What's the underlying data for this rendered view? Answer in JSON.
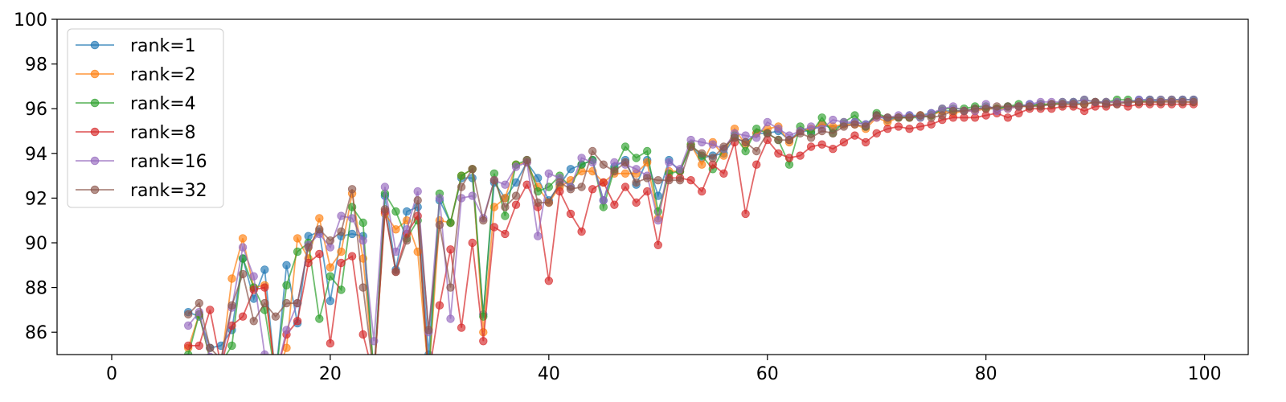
{
  "chart_data": {
    "type": "line",
    "xlim": [
      -5,
      104
    ],
    "ylim": [
      85,
      100
    ],
    "grid": false,
    "legend_position": "top-left",
    "x_ticks": [
      0,
      20,
      40,
      60,
      80,
      100
    ],
    "x_tick_labels": [
      "0",
      "20",
      "40",
      "60",
      "80",
      "100"
    ],
    "y_ticks": [
      86,
      88,
      90,
      92,
      94,
      96,
      98,
      100
    ],
    "y_tick_labels": [
      "86",
      "88",
      "90",
      "92",
      "94",
      "96",
      "98",
      "100"
    ],
    "x": [
      7,
      8,
      9,
      10,
      11,
      12,
      13,
      14,
      15,
      16,
      17,
      18,
      19,
      20,
      21,
      22,
      23,
      24,
      25,
      26,
      27,
      28,
      29,
      30,
      31,
      32,
      33,
      34,
      35,
      36,
      37,
      38,
      39,
      40,
      41,
      42,
      43,
      44,
      45,
      46,
      47,
      48,
      49,
      50,
      51,
      52,
      53,
      54,
      55,
      56,
      57,
      58,
      59,
      60,
      61,
      62,
      63,
      64,
      65,
      66,
      67,
      68,
      69,
      70,
      71,
      72,
      73,
      74,
      75,
      76,
      77,
      78,
      79,
      80,
      81,
      82,
      83,
      84,
      85,
      86,
      87,
      88,
      89,
      90,
      91,
      92,
      93,
      94,
      95,
      96,
      97,
      98,
      99
    ],
    "series": [
      {
        "name": "rank=1",
        "color": "#1f77b4",
        "values": [
          86.9,
          86.7,
          85.3,
          85.4,
          86.1,
          89.3,
          87.5,
          88.8,
          84.0,
          89.0,
          86.4,
          90.3,
          90.5,
          87.4,
          90.3,
          90.4,
          90.3,
          84.0,
          92.1,
          88.8,
          91.4,
          91.6,
          85.0,
          91.9,
          90.9,
          92.9,
          92.9,
          86.8,
          92.7,
          92.0,
          92.7,
          93.6,
          92.9,
          91.9,
          92.6,
          93.3,
          93.5,
          93.7,
          91.9,
          93.4,
          93.7,
          92.6,
          93.7,
          92.1,
          93.7,
          93.2,
          94.3,
          93.8,
          93.9,
          94.0,
          94.7,
          94.5,
          94.9,
          94.9,
          95.0,
          94.6,
          95.0,
          95.0,
          95.3,
          95.1,
          95.3,
          95.4,
          95.3,
          95.7,
          95.5,
          95.6,
          95.7,
          95.7,
          95.8,
          95.9,
          95.9,
          95.9,
          96.0,
          96.0,
          96.0,
          96.1,
          96.1,
          96.2,
          96.2,
          96.2,
          96.2,
          96.3,
          96.2,
          96.3,
          96.3,
          96.3,
          96.3,
          96.4,
          96.4,
          96.3,
          96.4,
          96.4,
          96.4
        ]
      },
      {
        "name": "rank=2",
        "color": "#ff7f0e",
        "values": [
          85.3,
          86.8,
          84.8,
          84.5,
          88.4,
          90.2,
          88.0,
          88.1,
          84.0,
          85.3,
          90.2,
          89.3,
          91.1,
          88.9,
          89.6,
          92.2,
          89.3,
          84.0,
          91.3,
          90.6,
          91.0,
          89.6,
          84.0,
          91.0,
          90.9,
          93.0,
          93.3,
          86.0,
          91.6,
          92.0,
          93.5,
          93.6,
          92.5,
          91.8,
          92.5,
          92.8,
          93.2,
          93.2,
          92.7,
          93.1,
          93.1,
          93.1,
          93.6,
          91.1,
          93.2,
          93.2,
          94.4,
          93.5,
          94.5,
          93.9,
          95.1,
          94.4,
          94.9,
          95.1,
          95.2,
          94.5,
          95.0,
          95.1,
          95.3,
          95.2,
          95.3,
          95.3,
          95.1,
          95.6,
          95.4,
          95.6,
          95.6,
          95.7,
          95.7,
          95.9,
          95.8,
          95.9,
          95.9,
          96.0,
          96.0,
          96.0,
          96.1,
          96.1,
          96.2,
          96.2,
          96.2,
          96.2,
          96.2,
          96.3,
          96.3,
          96.3,
          96.3,
          96.3,
          96.3,
          96.3,
          96.4,
          96.3,
          96.3
        ]
      },
      {
        "name": "rank=4",
        "color": "#2ca02c",
        "values": [
          85.0,
          86.8,
          84.8,
          84.6,
          85.4,
          89.3,
          88.0,
          87.0,
          84.0,
          88.1,
          89.6,
          90.0,
          86.6,
          88.5,
          87.9,
          91.6,
          90.9,
          84.0,
          92.2,
          91.4,
          90.2,
          91.0,
          84.0,
          92.2,
          90.9,
          93.0,
          93.3,
          86.7,
          93.1,
          91.2,
          93.5,
          93.7,
          92.3,
          92.5,
          93.0,
          92.5,
          93.5,
          93.7,
          91.6,
          93.3,
          94.3,
          93.8,
          94.1,
          91.4,
          93.1,
          93.2,
          94.4,
          93.9,
          93.3,
          94.2,
          94.8,
          94.1,
          95.1,
          94.9,
          94.6,
          93.5,
          95.2,
          94.9,
          95.6,
          94.9,
          95.4,
          95.7,
          95.2,
          95.8,
          95.6,
          95.6,
          95.6,
          95.6,
          95.7,
          96.0,
          96.0,
          96.0,
          96.1,
          96.1,
          96.0,
          96.1,
          96.2,
          96.1,
          96.2,
          96.2,
          96.3,
          96.3,
          96.4,
          96.3,
          96.3,
          96.4,
          96.4,
          96.3,
          96.4,
          96.4,
          96.4,
          96.4,
          96.4
        ]
      },
      {
        "name": "rank=8",
        "color": "#d62728",
        "values": [
          85.4,
          85.4,
          87.0,
          84.5,
          86.3,
          86.7,
          87.9,
          88.0,
          84.0,
          85.9,
          86.5,
          89.1,
          89.5,
          85.5,
          89.1,
          89.4,
          85.9,
          84.0,
          91.4,
          88.7,
          90.4,
          91.2,
          84.0,
          87.2,
          89.7,
          86.2,
          90.0,
          85.6,
          90.7,
          90.4,
          91.7,
          92.6,
          91.6,
          88.3,
          92.3,
          91.3,
          90.5,
          92.4,
          92.7,
          91.7,
          92.5,
          91.8,
          92.3,
          89.9,
          92.9,
          92.9,
          92.8,
          92.3,
          93.5,
          93.1,
          94.5,
          91.3,
          93.5,
          94.6,
          94.0,
          93.8,
          93.9,
          94.3,
          94.4,
          94.2,
          94.5,
          94.8,
          94.5,
          94.9,
          95.1,
          95.2,
          95.1,
          95.2,
          95.3,
          95.5,
          95.6,
          95.6,
          95.6,
          95.7,
          95.8,
          95.6,
          95.8,
          96.0,
          96.0,
          96.0,
          96.1,
          96.1,
          95.9,
          96.1,
          96.1,
          96.2,
          96.1,
          96.2,
          96.2,
          96.2,
          96.2,
          96.2,
          96.2
        ]
      },
      {
        "name": "rank=16",
        "color": "#9467bd",
        "values": [
          86.3,
          86.9,
          84.9,
          84.6,
          87.1,
          89.8,
          88.5,
          85.0,
          84.0,
          86.1,
          87.3,
          89.9,
          90.4,
          89.8,
          91.2,
          91.1,
          90.1,
          85.6,
          92.5,
          89.6,
          90.6,
          92.3,
          86.0,
          92.0,
          86.6,
          92.0,
          92.1,
          91.1,
          92.8,
          92.6,
          93.4,
          93.6,
          90.3,
          93.1,
          92.9,
          92.5,
          93.8,
          93.6,
          91.9,
          93.6,
          93.5,
          93.3,
          93.0,
          91.0,
          93.6,
          93.3,
          94.6,
          94.5,
          94.4,
          94.2,
          94.9,
          94.8,
          94.7,
          95.4,
          95.1,
          94.8,
          95.0,
          95.2,
          95.1,
          95.5,
          95.4,
          95.4,
          95.3,
          95.6,
          95.6,
          95.7,
          95.7,
          95.6,
          95.8,
          96.0,
          96.1,
          95.9,
          95.9,
          96.2,
          95.9,
          96.0,
          96.1,
          96.2,
          96.3,
          96.3,
          96.3,
          96.3,
          96.4,
          96.3,
          96.3,
          96.3,
          96.3,
          96.4,
          96.4,
          96.4,
          96.4,
          96.4,
          96.4
        ]
      },
      {
        "name": "rank=32",
        "color": "#8c564b",
        "values": [
          86.8,
          87.3,
          85.3,
          84.8,
          87.2,
          88.6,
          86.5,
          87.3,
          86.7,
          87.3,
          87.3,
          89.8,
          90.6,
          90.1,
          90.5,
          92.4,
          88.0,
          84.0,
          91.5,
          88.7,
          90.1,
          91.9,
          86.1,
          90.8,
          88.0,
          92.5,
          93.3,
          91.0,
          92.8,
          91.6,
          92.1,
          93.7,
          91.8,
          91.8,
          92.7,
          92.4,
          92.5,
          94.1,
          93.5,
          93.2,
          93.6,
          92.7,
          92.9,
          92.8,
          92.8,
          92.8,
          94.3,
          94.0,
          93.8,
          94.3,
          94.7,
          94.5,
          94.1,
          94.9,
          94.6,
          94.6,
          94.9,
          94.7,
          95.0,
          94.9,
          95.2,
          95.3,
          95.2,
          95.7,
          95.6,
          95.6,
          95.6,
          95.7,
          95.6,
          95.7,
          95.9,
          95.9,
          96.0,
          96.0,
          96.1,
          96.1,
          96.1,
          96.1,
          96.1,
          96.2,
          96.2,
          96.2,
          96.2,
          96.3,
          96.2,
          96.2,
          96.3,
          96.3,
          96.3,
          96.3,
          96.3,
          96.3,
          96.3
        ]
      }
    ]
  }
}
